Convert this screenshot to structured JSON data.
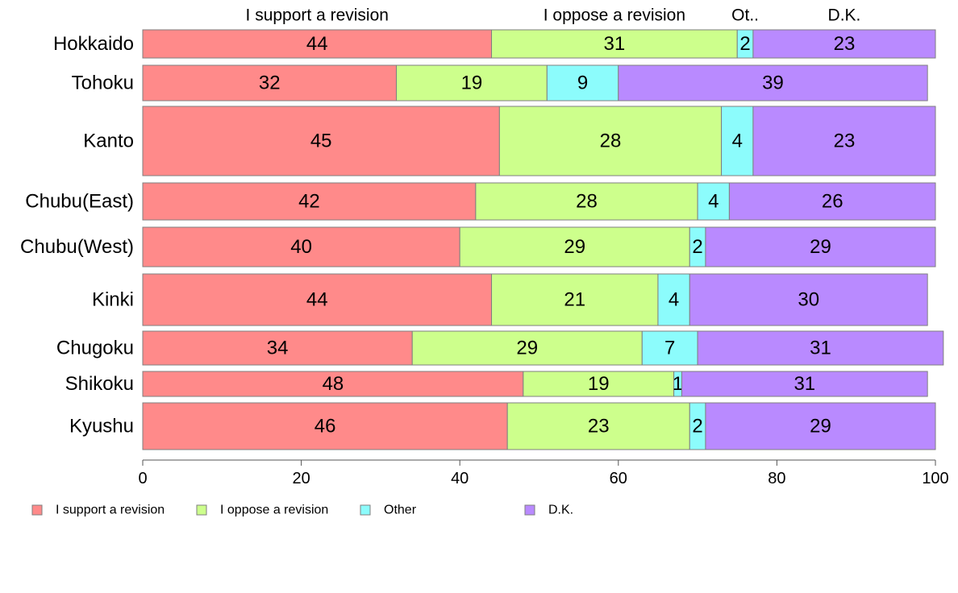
{
  "chart_data": {
    "type": "bar",
    "orientation": "horizontal",
    "stacked": true,
    "title": "",
    "xlabel": "",
    "ylabel": "",
    "xlim": [
      0,
      100
    ],
    "xticks": [
      0,
      20,
      40,
      60,
      80,
      100
    ],
    "categories": [
      "Hokkaido",
      "Tohoku",
      "Kanto",
      "Chubu(East)",
      "Chubu(West)",
      "Kinki",
      "Chugoku",
      "Shikoku",
      "Kyushu"
    ],
    "series": [
      {
        "name": "I support a revision",
        "color": "#ff8a8a",
        "values": [
          44,
          32,
          45,
          42,
          40,
          44,
          34,
          48,
          46
        ]
      },
      {
        "name": "I oppose a revision",
        "color": "#cdff8c",
        "values": [
          31,
          19,
          28,
          28,
          29,
          21,
          29,
          19,
          23
        ]
      },
      {
        "name": "Other",
        "color": "#8cfcfc",
        "values": [
          2,
          9,
          4,
          4,
          2,
          4,
          7,
          1,
          2
        ]
      },
      {
        "name": "D.K.",
        "color": "#b98aff",
        "values": [
          23,
          39,
          23,
          26,
          29,
          30,
          31,
          31,
          29
        ]
      }
    ],
    "top_labels": [
      "I support a revision",
      "I oppose a revision",
      "Ot..",
      "D.K."
    ],
    "legend_position": "bottom-left",
    "grid": false
  }
}
